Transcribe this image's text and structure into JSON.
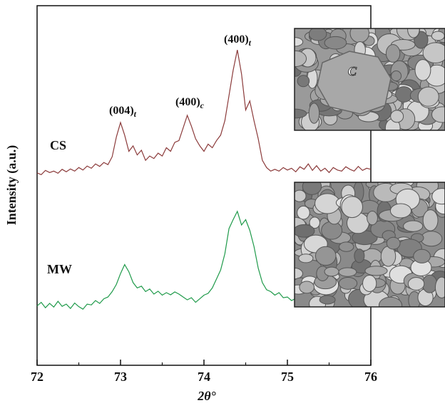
{
  "chart_data": {
    "type": "line",
    "y_label": "Intensity (a.u.)",
    "x_label": "2θ°",
    "xlim": [
      72,
      76
    ],
    "ylim": [
      0,
      100
    ],
    "xticks": [
      72,
      73,
      74,
      75,
      76
    ],
    "xminorticks": [
      72.5,
      73.5,
      74.5,
      75.5
    ],
    "annotations": [
      {
        "text": "(004)",
        "sub": "t"
      },
      {
        "text": "(400)",
        "sub": "c"
      },
      {
        "text": "(400)",
        "sub": "t"
      }
    ],
    "inset_label": "C",
    "x": [
      72.0,
      72.05,
      72.1,
      72.15,
      72.2,
      72.25,
      72.3,
      72.35,
      72.4,
      72.45,
      72.5,
      72.55,
      72.6,
      72.65,
      72.7,
      72.75,
      72.8,
      72.85,
      72.9,
      72.95,
      73.0,
      73.05,
      73.1,
      73.15,
      73.2,
      73.25,
      73.3,
      73.35,
      73.4,
      73.45,
      73.5,
      73.55,
      73.6,
      73.65,
      73.7,
      73.75,
      73.8,
      73.85,
      73.9,
      73.95,
      74.0,
      74.05,
      74.1,
      74.15,
      74.2,
      74.25,
      74.3,
      74.35,
      74.4,
      74.45,
      74.5,
      74.55,
      74.6,
      74.65,
      74.7,
      74.75,
      74.8,
      74.85,
      74.9,
      74.95,
      75.0,
      75.05,
      75.1,
      75.15,
      75.2,
      75.25,
      75.3,
      75.35,
      75.4,
      75.45,
      75.5,
      75.55,
      75.6,
      75.65,
      75.7,
      75.75,
      75.8,
      75.85,
      75.9,
      75.95,
      76.0
    ],
    "series": [
      {
        "name": "CS",
        "color": "#8b3a3a",
        "values": [
          53.5,
          53.0,
          54.2,
          53.6,
          54.0,
          53.4,
          54.5,
          53.8,
          54.6,
          54.0,
          55.0,
          54.3,
          55.4,
          54.8,
          56.0,
          55.3,
          56.4,
          55.8,
          58.0,
          63.5,
          67.5,
          64.0,
          59.5,
          61.0,
          58.5,
          59.8,
          57.0,
          58.2,
          57.5,
          59.0,
          58.2,
          60.5,
          59.5,
          62.0,
          62.5,
          66.0,
          69.5,
          66.5,
          63.0,
          61.0,
          59.5,
          61.5,
          60.5,
          62.5,
          64.0,
          68.0,
          75.0,
          82.0,
          87.7,
          81.0,
          71.0,
          73.5,
          68.0,
          63.0,
          57.0,
          55.0,
          54.0,
          54.5,
          54.0,
          55.0,
          54.3,
          54.8,
          53.8,
          55.2,
          54.5,
          56.0,
          54.2,
          55.5,
          54.0,
          54.8,
          53.6,
          55.0,
          54.3,
          54.0,
          55.2,
          54.5,
          54.0,
          55.3,
          54.2,
          54.8,
          54.5
        ]
      },
      {
        "name": "MW",
        "color": "#1f9a4a",
        "values": [
          16.5,
          17.5,
          16.0,
          17.2,
          16.2,
          17.8,
          16.4,
          17.0,
          15.8,
          17.3,
          16.3,
          15.6,
          17.0,
          16.8,
          18.0,
          17.2,
          18.5,
          19.0,
          20.5,
          22.5,
          25.5,
          28.0,
          26.0,
          23.0,
          21.5,
          22.0,
          20.5,
          21.2,
          19.8,
          20.6,
          19.5,
          20.2,
          19.6,
          20.4,
          19.8,
          19.0,
          18.2,
          18.8,
          17.5,
          18.5,
          19.5,
          20.0,
          21.5,
          24.0,
          26.5,
          31.0,
          38.0,
          40.5,
          42.8,
          39.0,
          40.5,
          37.5,
          33.0,
          27.0,
          23.0,
          21.0,
          20.5,
          19.5,
          20.2,
          18.8,
          19.0,
          18.0,
          18.6,
          17.6,
          18.2,
          17.0,
          17.8,
          16.6,
          17.5,
          16.8,
          17.2,
          16.4,
          17.6,
          16.5,
          17.2,
          16.3,
          17.0,
          16.5,
          17.2,
          16.6,
          16.8
        ]
      }
    ]
  }
}
